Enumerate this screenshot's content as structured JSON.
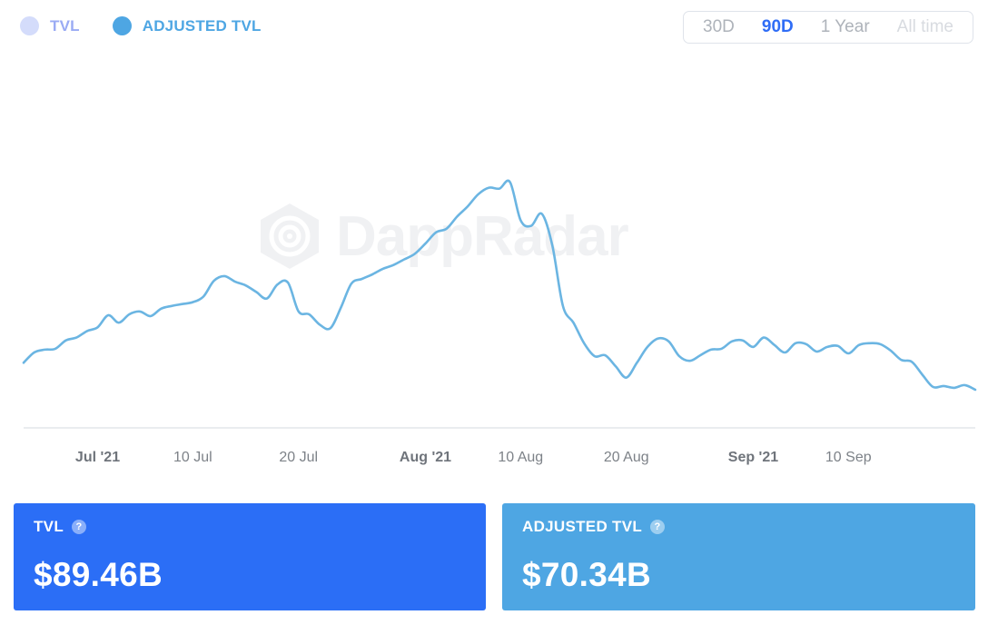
{
  "legend": [
    {
      "label": "TVL",
      "color": "#d4dcfb",
      "text_color": "#9aabf4"
    },
    {
      "label": "ADJUSTED TVL",
      "color": "#4ea6e3",
      "text_color": "#4ea6e3"
    }
  ],
  "ranges": [
    {
      "label": "30D",
      "state": "normal"
    },
    {
      "label": "90D",
      "state": "active"
    },
    {
      "label": "1 Year",
      "state": "normal"
    },
    {
      "label": "All time",
      "state": "disabled"
    }
  ],
  "watermark": {
    "text": "DappRadar"
  },
  "colors": {
    "line": "#6bb5e2",
    "axis": "#e3e6ea",
    "range_active": "#2f6df6",
    "range_normal": "#aeb3ba",
    "range_disabled": "#d8dbe0",
    "card_tvl": "#2b6ef6",
    "card_adjusted": "#4ea6e3"
  },
  "chart_data": {
    "type": "line",
    "x_start": "2021-06-24",
    "x_end": "2021-09-22",
    "ylim": [
      54,
      94
    ],
    "grid": false,
    "legend_position": "top-left",
    "x_ticks": [
      {
        "label": "Jul '21",
        "date": "2021-07-01",
        "bold": true
      },
      {
        "label": "10 Jul",
        "date": "2021-07-10",
        "bold": false
      },
      {
        "label": "20 Jul",
        "date": "2021-07-20",
        "bold": false
      },
      {
        "label": "Aug '21",
        "date": "2021-08-01",
        "bold": true
      },
      {
        "label": "10 Aug",
        "date": "2021-08-10",
        "bold": false
      },
      {
        "label": "20 Aug",
        "date": "2021-08-20",
        "bold": false
      },
      {
        "label": "Sep '21",
        "date": "2021-09-01",
        "bold": true
      },
      {
        "label": "10 Sep",
        "date": "2021-09-10",
        "bold": false
      }
    ],
    "series": [
      {
        "name": "ADJUSTED TVL",
        "color": "#6bb5e2",
        "points": [
          [
            "2021-06-24",
            60.9
          ],
          [
            "2021-06-25",
            62.0
          ],
          [
            "2021-06-26",
            62.3
          ],
          [
            "2021-06-27",
            62.4
          ],
          [
            "2021-06-28",
            63.3
          ],
          [
            "2021-06-29",
            63.6
          ],
          [
            "2021-06-30",
            64.3
          ],
          [
            "2021-07-01",
            64.7
          ],
          [
            "2021-07-02",
            66.0
          ],
          [
            "2021-07-03",
            65.2
          ],
          [
            "2021-07-04",
            66.1
          ],
          [
            "2021-07-05",
            66.4
          ],
          [
            "2021-07-06",
            65.9
          ],
          [
            "2021-07-07",
            66.7
          ],
          [
            "2021-07-08",
            67.0
          ],
          [
            "2021-07-09",
            67.2
          ],
          [
            "2021-07-10",
            67.4
          ],
          [
            "2021-07-11",
            68.0
          ],
          [
            "2021-07-12",
            69.7
          ],
          [
            "2021-07-13",
            70.2
          ],
          [
            "2021-07-14",
            69.6
          ],
          [
            "2021-07-15",
            69.2
          ],
          [
            "2021-07-16",
            68.5
          ],
          [
            "2021-07-17",
            67.8
          ],
          [
            "2021-07-18",
            69.3
          ],
          [
            "2021-07-19",
            69.5
          ],
          [
            "2021-07-20",
            66.4
          ],
          [
            "2021-07-21",
            66.1
          ],
          [
            "2021-07-22",
            65.0
          ],
          [
            "2021-07-23",
            64.6
          ],
          [
            "2021-07-24",
            66.8
          ],
          [
            "2021-07-25",
            69.4
          ],
          [
            "2021-07-26",
            69.9
          ],
          [
            "2021-07-27",
            70.4
          ],
          [
            "2021-07-28",
            71.0
          ],
          [
            "2021-07-29",
            71.4
          ],
          [
            "2021-07-30",
            72.0
          ],
          [
            "2021-07-31",
            72.6
          ],
          [
            "2021-08-01",
            73.7
          ],
          [
            "2021-08-02",
            74.9
          ],
          [
            "2021-08-03",
            75.3
          ],
          [
            "2021-08-04",
            76.6
          ],
          [
            "2021-08-05",
            77.7
          ],
          [
            "2021-08-06",
            79.0
          ],
          [
            "2021-08-07",
            79.7
          ],
          [
            "2021-08-08",
            79.6
          ],
          [
            "2021-08-09",
            80.3
          ],
          [
            "2021-08-10",
            76.2
          ],
          [
            "2021-08-11",
            75.6
          ],
          [
            "2021-08-12",
            76.9
          ],
          [
            "2021-08-13",
            73.5
          ],
          [
            "2021-08-14",
            67.0
          ],
          [
            "2021-08-15",
            65.2
          ],
          [
            "2021-08-16",
            63.0
          ],
          [
            "2021-08-17",
            61.6
          ],
          [
            "2021-08-18",
            61.7
          ],
          [
            "2021-08-19",
            60.5
          ],
          [
            "2021-08-20",
            59.3
          ],
          [
            "2021-08-21",
            60.9
          ],
          [
            "2021-08-22",
            62.6
          ],
          [
            "2021-08-23",
            63.5
          ],
          [
            "2021-08-24",
            63.2
          ],
          [
            "2021-08-25",
            61.6
          ],
          [
            "2021-08-26",
            61.1
          ],
          [
            "2021-08-27",
            61.7
          ],
          [
            "2021-08-28",
            62.3
          ],
          [
            "2021-08-29",
            62.4
          ],
          [
            "2021-08-30",
            63.2
          ],
          [
            "2021-08-31",
            63.3
          ],
          [
            "2021-09-01",
            62.6
          ],
          [
            "2021-09-02",
            63.6
          ],
          [
            "2021-09-03",
            62.8
          ],
          [
            "2021-09-04",
            62.0
          ],
          [
            "2021-09-05",
            63.0
          ],
          [
            "2021-09-06",
            62.9
          ],
          [
            "2021-09-07",
            62.1
          ],
          [
            "2021-09-08",
            62.6
          ],
          [
            "2021-09-09",
            62.7
          ],
          [
            "2021-09-10",
            61.9
          ],
          [
            "2021-09-11",
            62.8
          ],
          [
            "2021-09-12",
            63.0
          ],
          [
            "2021-09-13",
            62.9
          ],
          [
            "2021-09-14",
            62.2
          ],
          [
            "2021-09-15",
            61.2
          ],
          [
            "2021-09-16",
            61.0
          ],
          [
            "2021-09-17",
            59.6
          ],
          [
            "2021-09-18",
            58.3
          ],
          [
            "2021-09-19",
            58.4
          ],
          [
            "2021-09-20",
            58.2
          ],
          [
            "2021-09-21",
            58.5
          ],
          [
            "2021-09-22",
            58.0
          ]
        ]
      }
    ]
  },
  "cards": {
    "tvl": {
      "title": "TVL",
      "value": "$89.46B"
    },
    "adjusted": {
      "title": "ADJUSTED TVL",
      "value": "$70.34B"
    }
  }
}
